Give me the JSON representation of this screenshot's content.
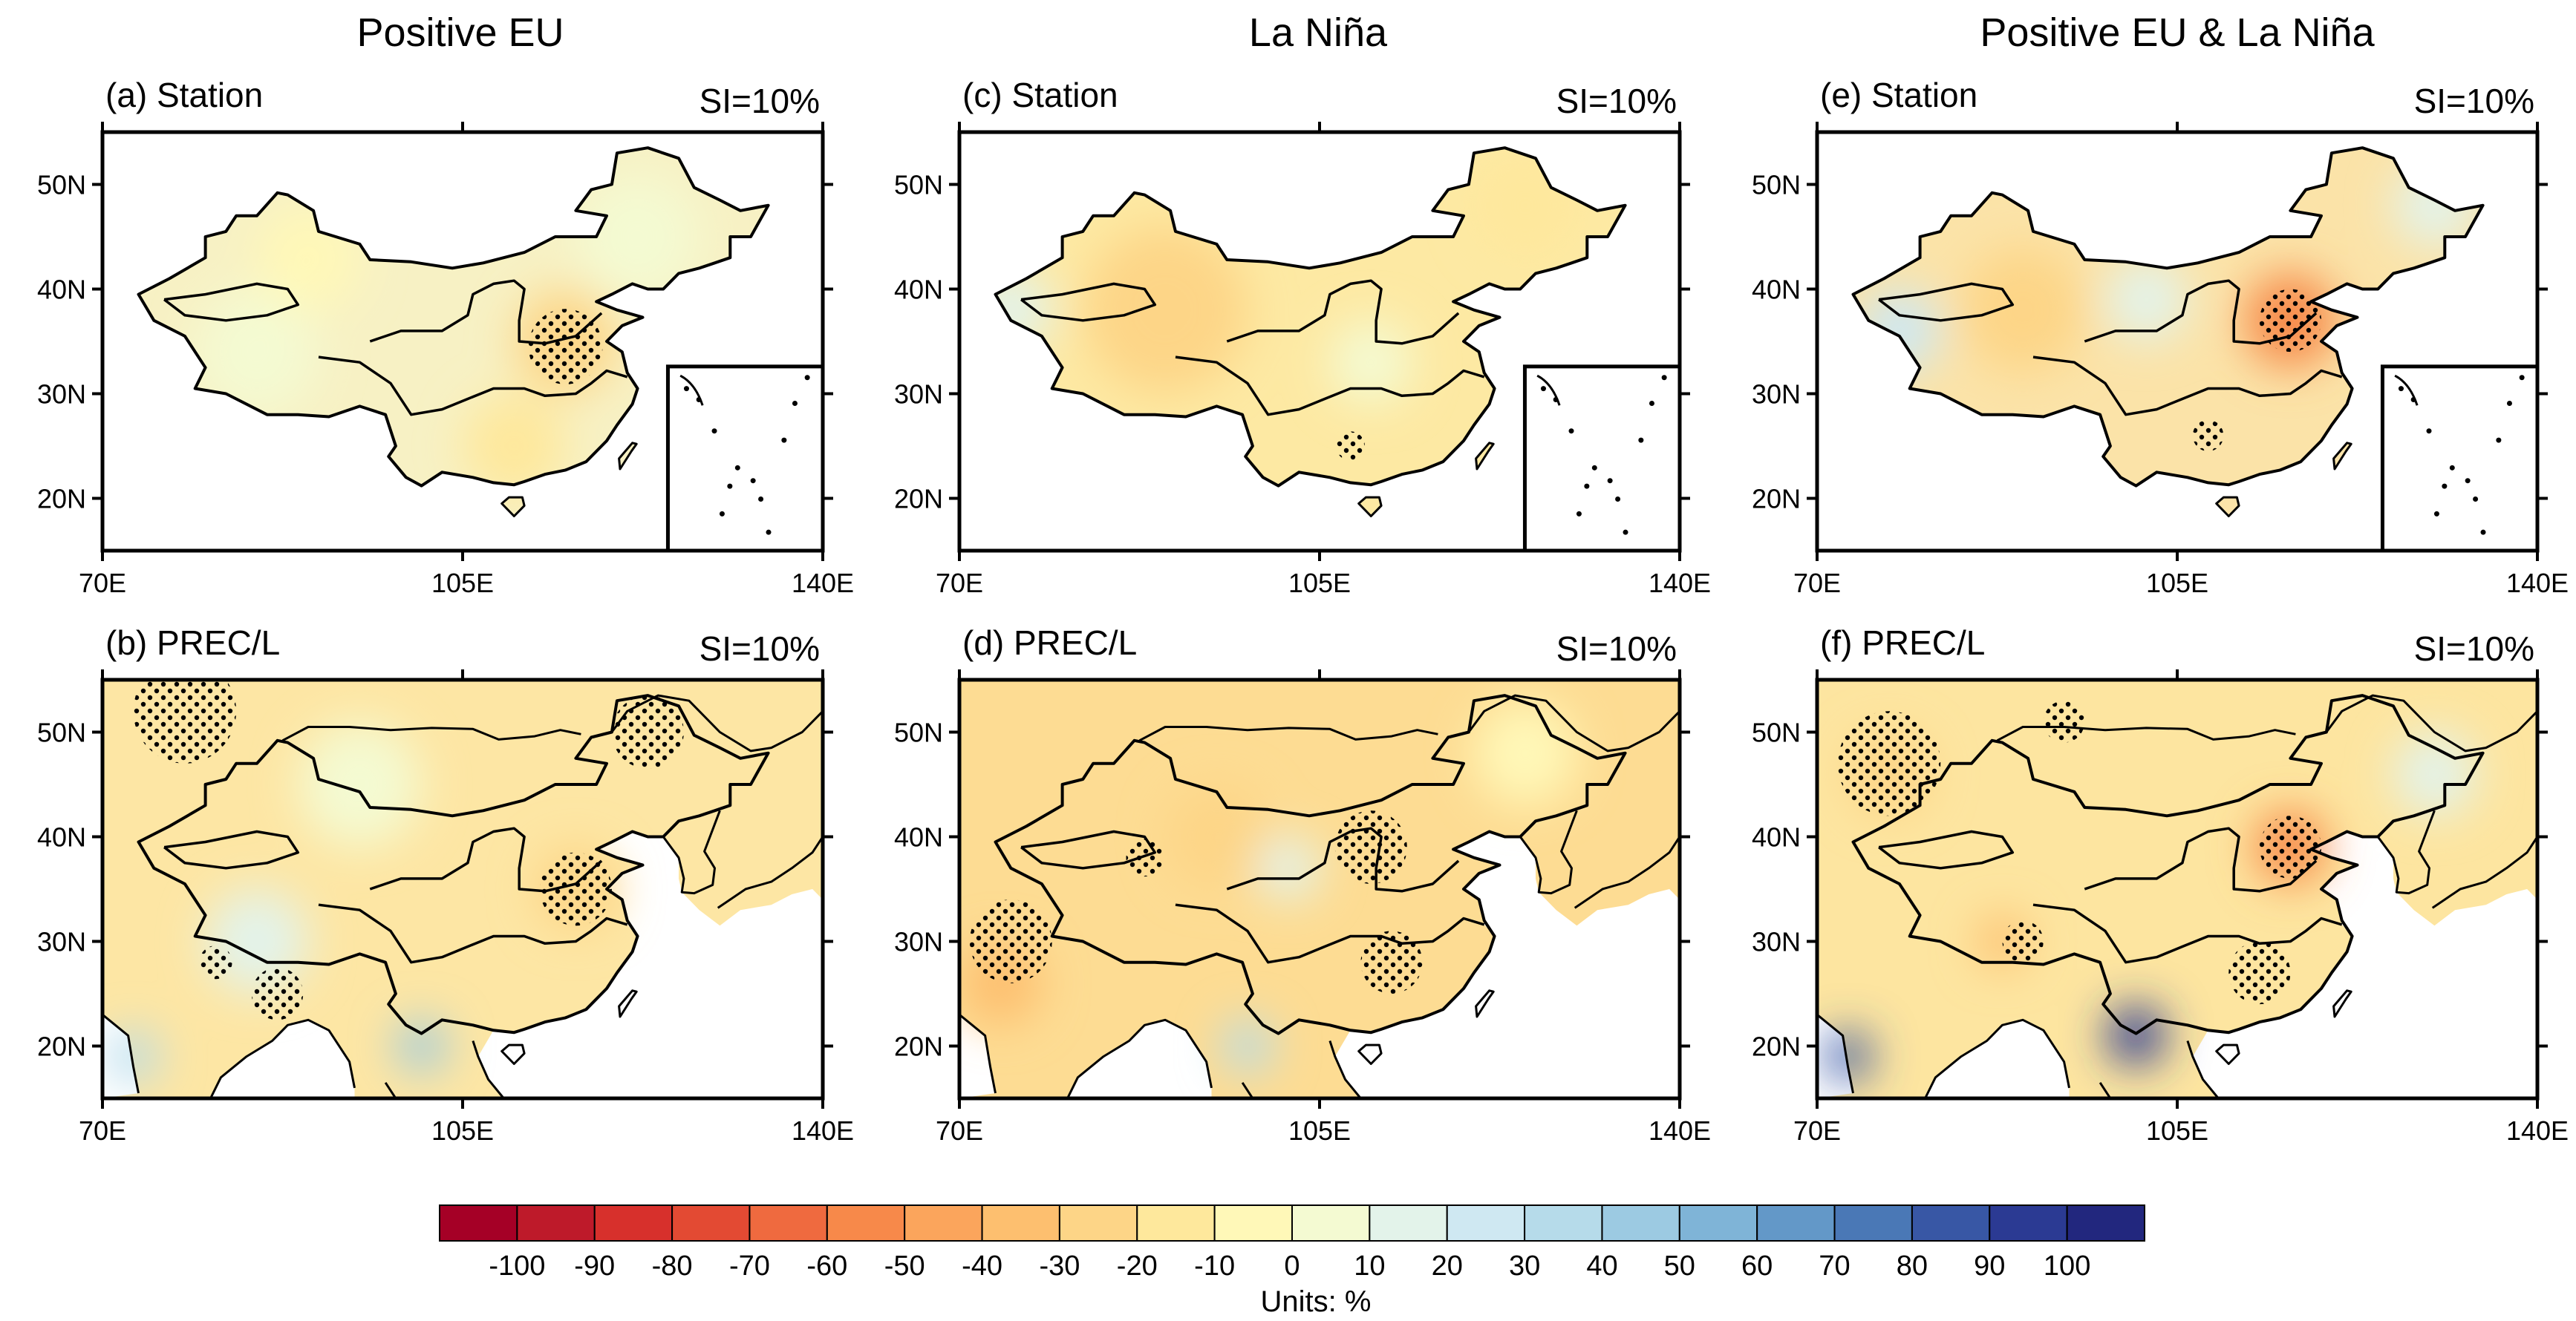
{
  "columns": [
    {
      "title": "Positive EU"
    },
    {
      "title": "La Niña"
    },
    {
      "title": "Positive EU & La Niña"
    }
  ],
  "panels": [
    {
      "id": "a",
      "label": "(a) Station",
      "si": "SI=10%",
      "col": 0,
      "row": 0,
      "dataset": "Station"
    },
    {
      "id": "b",
      "label": "(b) PREC/L",
      "si": "SI=10%",
      "col": 0,
      "row": 1,
      "dataset": "PREC/L"
    },
    {
      "id": "c",
      "label": "(c) Station",
      "si": "SI=10%",
      "col": 1,
      "row": 0,
      "dataset": "Station"
    },
    {
      "id": "d",
      "label": "(d) PREC/L",
      "si": "SI=10%",
      "col": 1,
      "row": 1,
      "dataset": "PREC/L"
    },
    {
      "id": "e",
      "label": "(e) Station",
      "si": "SI=10%",
      "col": 2,
      "row": 0,
      "dataset": "Station"
    },
    {
      "id": "f",
      "label": "(f) PREC/L",
      "si": "SI=10%",
      "col": 2,
      "row": 1,
      "dataset": "PREC/L"
    }
  ],
  "axes": {
    "lon_range": [
      70,
      140
    ],
    "lat_range": [
      15,
      55
    ],
    "lon_ticks": [
      {
        "value": 70,
        "label": "70E"
      },
      {
        "value": 105,
        "label": "105E"
      },
      {
        "value": 140,
        "label": "140E"
      }
    ],
    "lat_ticks": [
      {
        "value": 20,
        "label": "20N"
      },
      {
        "value": 30,
        "label": "30N"
      },
      {
        "value": 40,
        "label": "40N"
      },
      {
        "value": 50,
        "label": "50N"
      }
    ]
  },
  "colorbar": {
    "levels": [
      -100,
      -90,
      -80,
      -70,
      -60,
      -50,
      -40,
      -30,
      -20,
      -10,
      0,
      10,
      20,
      30,
      40,
      50,
      60,
      70,
      80,
      90,
      100
    ],
    "labels": [
      "-100",
      "-90",
      "-80",
      "-70",
      "-60",
      "-50",
      "-40",
      "-30",
      "-20",
      "-10",
      "0",
      "10",
      "20",
      "30",
      "40",
      "50",
      "60",
      "70",
      "80",
      "90",
      "100"
    ],
    "colors": [
      "#a50026",
      "#be1a2a",
      "#d7302c",
      "#e34a33",
      "#ef6a3f",
      "#f7894a",
      "#fba55c",
      "#fdbf6f",
      "#fdd587",
      "#fee89c",
      "#fff8b8",
      "#f4fad2",
      "#e3f3ea",
      "#cfe8f2",
      "#b6dbea",
      "#9ccae2",
      "#7fb4d7",
      "#6398c8",
      "#4a78b6",
      "#3857a5",
      "#2b3a93",
      "#22277e"
    ],
    "units": "Units: %"
  },
  "fields": {
    "a": {
      "base": "#f7f1c4",
      "blobs": [
        {
          "lon": 115,
          "lat": 35,
          "r": 5,
          "v": -25
        },
        {
          "lon": 85,
          "lat": 34,
          "r": 6,
          "v": 8
        },
        {
          "lon": 110,
          "lat": 25,
          "r": 5,
          "v": -12
        },
        {
          "lon": 122,
          "lat": 45,
          "r": 6,
          "v": 6
        },
        {
          "lon": 90,
          "lat": 43,
          "r": 5,
          "v": -10
        }
      ],
      "stipple": [
        {
          "lon": 115,
          "lat": 34.5,
          "r": 3.6
        }
      ]
    },
    "b": {
      "base": "#fde6a4",
      "blobs": [
        {
          "lon": 101,
          "lat": 20,
          "r": 2.5,
          "v": 45
        },
        {
          "lon": 73,
          "lat": 19,
          "r": 2.5,
          "v": 30
        },
        {
          "lon": 85,
          "lat": 30,
          "r": 5,
          "v": 12
        },
        {
          "lon": 116,
          "lat": 35,
          "r": 4,
          "v": -25
        },
        {
          "lon": 95,
          "lat": 45,
          "r": 6,
          "v": 8
        }
      ],
      "stipple": [
        {
          "lon": 78,
          "lat": 52,
          "r": 5
        },
        {
          "lon": 116,
          "lat": 35,
          "r": 3.5
        },
        {
          "lon": 123,
          "lat": 50,
          "r": 3.5
        },
        {
          "lon": 87,
          "lat": 25,
          "r": 2.5
        },
        {
          "lon": 81,
          "lat": 28,
          "r": 1.6
        }
      ]
    },
    "c": {
      "base": "#fde9a3",
      "blobs": [
        {
          "lon": 90,
          "lat": 38,
          "r": 8,
          "v": -30
        },
        {
          "lon": 75,
          "lat": 38,
          "r": 4,
          "v": 15
        },
        {
          "lon": 110,
          "lat": 33,
          "r": 4,
          "v": 6
        },
        {
          "lon": 125,
          "lat": 48,
          "r": 5,
          "v": -12
        }
      ],
      "stipple": [
        {
          "lon": 108,
          "lat": 25,
          "r": 1.4
        }
      ]
    },
    "d": {
      "base": "#fddc93",
      "blobs": [
        {
          "lon": 74,
          "lat": 26,
          "r": 4,
          "v": -40
        },
        {
          "lon": 95,
          "lat": 40,
          "r": 5,
          "v": -30
        },
        {
          "lon": 98,
          "lat": 20,
          "r": 2.5,
          "v": 30
        },
        {
          "lon": 102,
          "lat": 37,
          "r": 3,
          "v": 10
        },
        {
          "lon": 125,
          "lat": 48,
          "r": 5,
          "v": -8
        }
      ],
      "stipple": [
        {
          "lon": 75,
          "lat": 30,
          "r": 4
        },
        {
          "lon": 110,
          "lat": 39,
          "r": 3.5
        },
        {
          "lon": 112,
          "lat": 28,
          "r": 3
        },
        {
          "lon": 88,
          "lat": 38,
          "r": 1.8
        }
      ]
    },
    "e": {
      "base": "#fbe3a8",
      "blobs": [
        {
          "lon": 116,
          "lat": 37,
          "r": 4.5,
          "v": -60
        },
        {
          "lon": 78,
          "lat": 36,
          "r": 4,
          "v": 20
        },
        {
          "lon": 102,
          "lat": 39,
          "r": 4,
          "v": 15
        },
        {
          "lon": 130,
          "lat": 48,
          "r": 4,
          "v": 12
        },
        {
          "lon": 90,
          "lat": 38,
          "r": 6,
          "v": -25
        }
      ],
      "stipple": [
        {
          "lon": 116,
          "lat": 37,
          "r": 3
        },
        {
          "lon": 108,
          "lat": 26,
          "r": 1.5
        }
      ]
    },
    "f": {
      "base": "#fde5a0",
      "blobs": [
        {
          "lon": 101,
          "lat": 21,
          "r": 2.8,
          "v": 95
        },
        {
          "lon": 73,
          "lat": 19,
          "r": 2.3,
          "v": 85
        },
        {
          "lon": 116,
          "lat": 39,
          "r": 3.5,
          "v": -55
        },
        {
          "lon": 88,
          "lat": 30,
          "r": 2.5,
          "v": -40
        },
        {
          "lon": 77,
          "lat": 46,
          "r": 4,
          "v": -28
        },
        {
          "lon": 130,
          "lat": 46,
          "r": 4,
          "v": 12
        }
      ],
      "stipple": [
        {
          "lon": 77,
          "lat": 47,
          "r": 5
        },
        {
          "lon": 116,
          "lat": 39,
          "r": 3
        },
        {
          "lon": 90,
          "lat": 30,
          "r": 2
        },
        {
          "lon": 113,
          "lat": 27,
          "r": 3
        },
        {
          "lon": 94,
          "lat": 51,
          "r": 2
        }
      ]
    }
  }
}
